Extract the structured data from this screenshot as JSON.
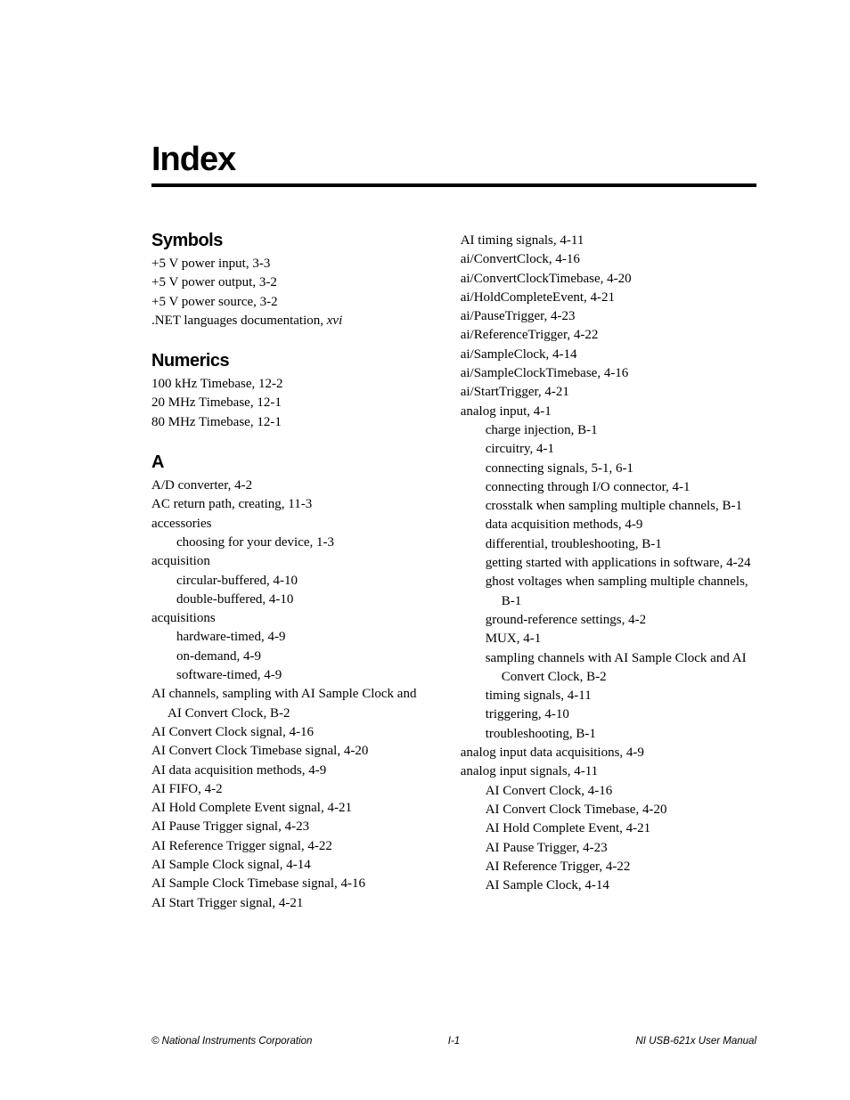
{
  "page": {
    "title": "Index",
    "footer": {
      "left": "© National Instruments Corporation",
      "center": "I-1",
      "right": "NI USB-621x User Manual"
    }
  },
  "leftColumn": {
    "sections": [
      {
        "heading": "Symbols",
        "entries": [
          {
            "text": "+5 V power input, 3-3",
            "level": 0
          },
          {
            "text": "+5 V power output, 3-2",
            "level": 0
          },
          {
            "text": "+5 V power source, 3-2",
            "level": 0
          },
          {
            "text": ".NET languages documentation, ",
            "tail_italic": "xvi",
            "level": 0
          }
        ]
      },
      {
        "heading": "Numerics",
        "entries": [
          {
            "text": "100 kHz Timebase, 12-2",
            "level": 0
          },
          {
            "text": "20 MHz Timebase, 12-1",
            "level": 0
          },
          {
            "text": "80 MHz Timebase, 12-1",
            "level": 0
          }
        ]
      },
      {
        "heading": "A",
        "entries": [
          {
            "text": "A/D converter, 4-2",
            "level": 0
          },
          {
            "text": "AC return path, creating, 11-3",
            "level": 0
          },
          {
            "text": "accessories",
            "level": 0
          },
          {
            "text": "choosing for your device, 1-3",
            "level": 1
          },
          {
            "text": "acquisition",
            "level": 0
          },
          {
            "text": "circular-buffered, 4-10",
            "level": 1
          },
          {
            "text": "double-buffered, 4-10",
            "level": 1
          },
          {
            "text": "acquisitions",
            "level": 0
          },
          {
            "text": "hardware-timed, 4-9",
            "level": 1
          },
          {
            "text": "on-demand, 4-9",
            "level": 1
          },
          {
            "text": "software-timed, 4-9",
            "level": 1
          },
          {
            "text": "AI channels, sampling with AI Sample Clock and AI Convert Clock, B-2",
            "level": 0
          },
          {
            "text": "AI Convert Clock signal, 4-16",
            "level": 0
          },
          {
            "text": "AI Convert Clock Timebase signal, 4-20",
            "level": 0
          },
          {
            "text": "AI data acquisition methods, 4-9",
            "level": 0
          },
          {
            "text": "AI FIFO, 4-2",
            "level": 0
          },
          {
            "text": "AI Hold Complete Event signal, 4-21",
            "level": 0
          },
          {
            "text": "AI Pause Trigger signal, 4-23",
            "level": 0
          },
          {
            "text": "AI Reference Trigger signal, 4-22",
            "level": 0
          },
          {
            "text": "AI Sample Clock signal, 4-14",
            "level": 0
          },
          {
            "text": "AI Sample Clock Timebase signal, 4-16",
            "level": 0
          },
          {
            "text": "AI Start Trigger signal, 4-21",
            "level": 0
          }
        ]
      }
    ]
  },
  "rightColumn": {
    "entries": [
      {
        "text": "AI timing signals, 4-11",
        "level": 0
      },
      {
        "text": "ai/ConvertClock, 4-16",
        "level": 0
      },
      {
        "text": "ai/ConvertClockTimebase, 4-20",
        "level": 0
      },
      {
        "text": "ai/HoldCompleteEvent, 4-21",
        "level": 0
      },
      {
        "text": "ai/PauseTrigger, 4-23",
        "level": 0
      },
      {
        "text": "ai/ReferenceTrigger, 4-22",
        "level": 0
      },
      {
        "text": "ai/SampleClock, 4-14",
        "level": 0
      },
      {
        "text": "ai/SampleClockTimebase, 4-16",
        "level": 0
      },
      {
        "text": "ai/StartTrigger, 4-21",
        "level": 0
      },
      {
        "text": "analog input, 4-1",
        "level": 0
      },
      {
        "text": "charge injection, B-1",
        "level": 1
      },
      {
        "text": "circuitry, 4-1",
        "level": 1
      },
      {
        "text": "connecting signals, 5-1, 6-1",
        "level": 1
      },
      {
        "text": "connecting through I/O connector, 4-1",
        "level": 1
      },
      {
        "text": "crosstalk when sampling multiple channels, B-1",
        "level": 1
      },
      {
        "text": "data acquisition methods, 4-9",
        "level": 1
      },
      {
        "text": "differential, troubleshooting, B-1",
        "level": 1
      },
      {
        "text": "getting started with applications in software, 4-24",
        "level": 1
      },
      {
        "text": "ghost voltages when sampling multiple channels, B-1",
        "level": 1
      },
      {
        "text": "ground-reference settings, 4-2",
        "level": 1
      },
      {
        "text": "MUX, 4-1",
        "level": 1
      },
      {
        "text": "sampling channels with AI Sample Clock and AI Convert Clock, B-2",
        "level": 1
      },
      {
        "text": "timing signals, 4-11",
        "level": 1
      },
      {
        "text": "triggering, 4-10",
        "level": 1
      },
      {
        "text": "troubleshooting, B-1",
        "level": 1
      },
      {
        "text": "analog input data acquisitions, 4-9",
        "level": 0
      },
      {
        "text": "analog input signals, 4-11",
        "level": 0
      },
      {
        "text": "AI Convert Clock, 4-16",
        "level": 1
      },
      {
        "text": "AI Convert Clock Timebase, 4-20",
        "level": 1
      },
      {
        "text": "AI Hold Complete Event, 4-21",
        "level": 1
      },
      {
        "text": "AI Pause Trigger, 4-23",
        "level": 1
      },
      {
        "text": "AI Reference Trigger, 4-22",
        "level": 1
      },
      {
        "text": "AI Sample Clock, 4-14",
        "level": 1
      }
    ]
  }
}
